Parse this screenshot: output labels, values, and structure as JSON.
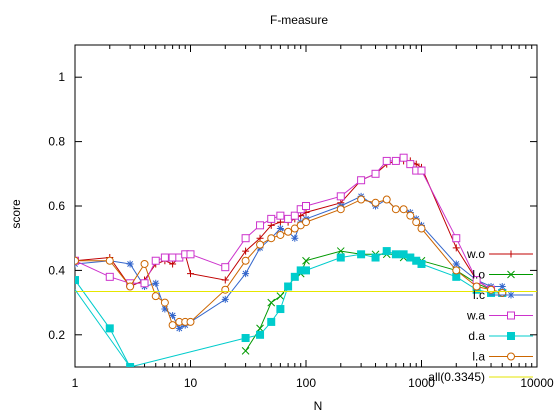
{
  "chart_data": {
    "type": "line",
    "title": "F-measure",
    "xlabel": "N",
    "ylabel": "score",
    "x_scale": "log",
    "xlim": [
      1,
      10000
    ],
    "ylim": [
      0.1,
      1.1
    ],
    "x_ticks": [
      1,
      10,
      100,
      1000,
      10000
    ],
    "x_tick_labels": [
      "1",
      "10",
      "100",
      "1000",
      "10000"
    ],
    "y_ticks": [
      0.2,
      0.4,
      0.6,
      0.8,
      1.0
    ],
    "y_tick_labels": [
      "0.2",
      "0.4",
      "0.6",
      "0.8",
      "1"
    ],
    "grid": false,
    "legend_position": "bottom-right",
    "series": [
      {
        "name": "w.o",
        "color": "#c00000",
        "marker": "plus",
        "x": [
          1,
          2,
          3,
          4,
          5,
          6,
          7,
          8,
          9,
          10,
          20,
          30,
          40,
          50,
          60,
          70,
          80,
          90,
          100,
          200,
          300,
          400,
          500,
          600,
          700,
          800,
          900,
          1000,
          2000,
          3000,
          4000,
          5000
        ],
        "y": [
          0.43,
          0.44,
          0.35,
          0.37,
          0.42,
          0.43,
          0.42,
          0.44,
          0.45,
          0.39,
          0.37,
          0.46,
          0.5,
          0.54,
          0.55,
          0.55,
          0.56,
          0.57,
          0.58,
          0.61,
          0.68,
          0.7,
          0.73,
          0.74,
          0.74,
          0.74,
          0.73,
          0.72,
          0.47,
          0.37,
          0.34,
          0.33
        ]
      },
      {
        "name": "l.o",
        "color": "#009900",
        "marker": "x",
        "x": [
          30,
          40,
          50,
          60,
          70,
          80,
          90,
          100,
          200,
          300,
          400,
          500,
          600,
          700,
          800,
          900,
          1000,
          2000,
          3000,
          4000,
          5000
        ],
        "y": [
          0.15,
          0.22,
          0.3,
          0.32,
          0.35,
          0.38,
          0.39,
          0.43,
          0.46,
          0.45,
          0.45,
          0.45,
          0.45,
          0.44,
          0.44,
          0.43,
          0.43,
          0.4,
          0.36,
          0.34,
          0.33
        ]
      },
      {
        "name": "l.c",
        "color": "#3366cc",
        "marker": "star",
        "x": [
          1,
          2,
          3,
          4,
          5,
          6,
          7,
          8,
          9,
          10,
          20,
          30,
          40,
          50,
          60,
          70,
          80,
          90,
          100,
          200,
          300,
          400,
          500,
          600,
          700,
          800,
          900,
          1000,
          2000,
          3000,
          4000,
          5000
        ],
        "y": [
          0.42,
          0.43,
          0.42,
          0.35,
          0.36,
          0.28,
          0.26,
          0.22,
          0.23,
          0.24,
          0.31,
          0.39,
          0.47,
          0.5,
          0.53,
          0.52,
          0.5,
          0.55,
          0.56,
          0.6,
          0.63,
          0.6,
          0.62,
          0.59,
          0.59,
          0.58,
          0.56,
          0.54,
          0.42,
          0.37,
          0.35,
          0.35
        ]
      },
      {
        "name": "w.a",
        "color": "#cc33cc",
        "marker": "square",
        "x": [
          1,
          2,
          3,
          4,
          5,
          6,
          7,
          8,
          9,
          10,
          20,
          30,
          40,
          50,
          60,
          70,
          80,
          90,
          100,
          200,
          300,
          400,
          500,
          600,
          700,
          800,
          900,
          1000,
          2000,
          3000,
          4000,
          5000
        ],
        "y": [
          0.43,
          0.38,
          0.36,
          0.36,
          0.43,
          0.44,
          0.44,
          0.44,
          0.45,
          0.45,
          0.41,
          0.5,
          0.54,
          0.56,
          0.57,
          0.56,
          0.57,
          0.59,
          0.6,
          0.63,
          0.68,
          0.7,
          0.74,
          0.74,
          0.75,
          0.73,
          0.71,
          0.71,
          0.5,
          0.37,
          0.34,
          0.33
        ]
      },
      {
        "name": "d.a",
        "color": "#00cccc",
        "marker": "filled-square",
        "x": [
          1,
          2,
          3,
          30,
          40,
          50,
          60,
          70,
          80,
          90,
          100,
          200,
          300,
          400,
          500,
          600,
          700,
          800,
          900,
          1000,
          2000,
          3000,
          4000,
          5000
        ],
        "y": [
          0.37,
          0.22,
          0.1,
          0.19,
          0.2,
          0.24,
          0.28,
          0.35,
          0.38,
          0.4,
          0.4,
          0.44,
          0.45,
          0.44,
          0.46,
          0.45,
          0.45,
          0.44,
          0.43,
          0.42,
          0.38,
          0.34,
          0.33,
          0.33
        ]
      },
      {
        "name": "l.a",
        "color": "#cc6600",
        "marker": "circle",
        "x": [
          1,
          2,
          3,
          4,
          5,
          6,
          7,
          8,
          9,
          10,
          20,
          30,
          40,
          50,
          60,
          70,
          80,
          90,
          100,
          200,
          300,
          400,
          500,
          600,
          700,
          800,
          900,
          1000,
          2000,
          3000,
          4000,
          5000
        ],
        "y": [
          0.43,
          0.43,
          0.35,
          0.42,
          0.32,
          0.3,
          0.23,
          0.24,
          0.24,
          0.24,
          0.34,
          0.43,
          0.48,
          0.5,
          0.51,
          0.52,
          0.53,
          0.54,
          0.55,
          0.59,
          0.62,
          0.61,
          0.62,
          0.59,
          0.59,
          0.57,
          0.55,
          0.53,
          0.4,
          0.35,
          0.34,
          0.33
        ]
      },
      {
        "name": "all(0.3345)",
        "color": "#e6e600",
        "marker": "none",
        "x": [
          1,
          10000
        ],
        "y": [
          0.3345,
          0.3345
        ]
      },
      {
        "name": "",
        "color": "#00cccc",
        "marker": "none",
        "x": [
          1,
          3
        ],
        "y": [
          0.34,
          0.1
        ]
      }
    ]
  }
}
